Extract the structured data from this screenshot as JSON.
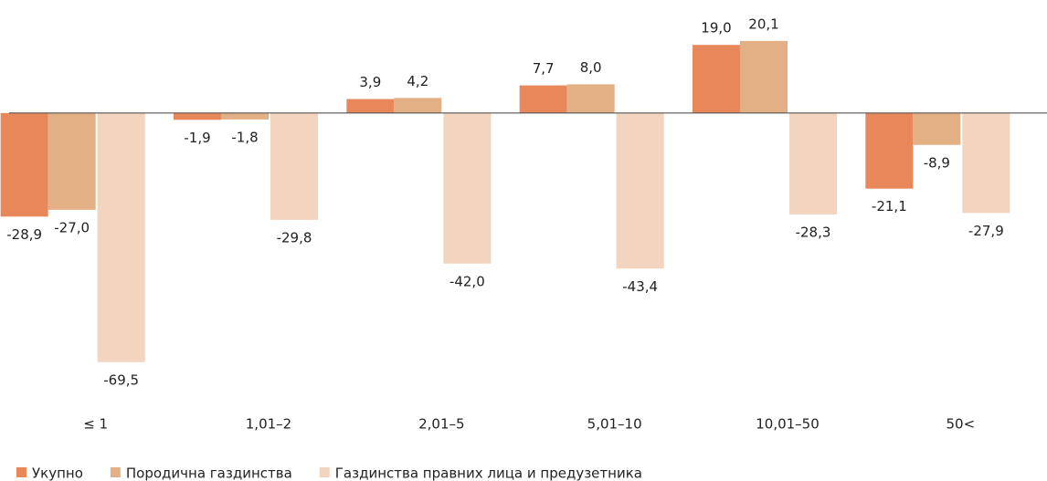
{
  "chart_data": {
    "type": "bar",
    "categories": [
      "≤ 1",
      "1,01–2",
      "2,01–5",
      "5,01–10",
      "10,01–50",
      "50<"
    ],
    "series": [
      {
        "name": "Укупно",
        "color": "#e8875a",
        "values": [
          -28.9,
          -1.9,
          3.9,
          7.7,
          19.0,
          -21.1
        ],
        "value_labels": [
          "-28,9",
          "-1,9",
          "3,9",
          "7,7",
          "19,0",
          "-21,1"
        ]
      },
      {
        "name": "Породична газдинства",
        "color": "#e3b085",
        "values": [
          -27.0,
          -1.8,
          4.2,
          8.0,
          20.1,
          -8.9
        ],
        "value_labels": [
          "-27,0",
          "-1,8",
          "4,2",
          "8,0",
          "20,1",
          "-8,9"
        ]
      },
      {
        "name": "Газдинства правних лица и предузетника",
        "color": "#f2d4bf",
        "values": [
          -69.5,
          -29.8,
          -42.0,
          -43.4,
          -28.3,
          -27.9
        ],
        "value_labels": [
          "-69,5",
          "-29,8",
          "-42,0",
          "-43,4",
          "-28,3",
          "-27,9"
        ]
      }
    ],
    "ylim": [
      -80,
      30
    ]
  }
}
